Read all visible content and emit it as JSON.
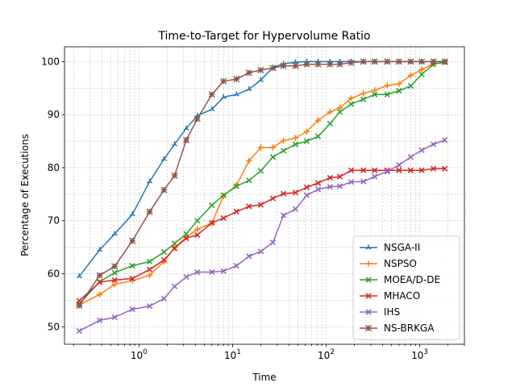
{
  "chart_data": {
    "type": "line",
    "title": "Time-to-Target for Hypervolume Ratio",
    "xlabel": "Time",
    "ylabel": "Percentage of Executions",
    "xscale": "log",
    "xlim": [
      0.16,
      3000
    ],
    "ylim": [
      46.7,
      102.8
    ],
    "x_ticks": [
      {
        "value": 1,
        "base": "10",
        "exp": "0"
      },
      {
        "value": 10,
        "base": "10",
        "exp": "1"
      },
      {
        "value": 100,
        "base": "10",
        "exp": "2"
      },
      {
        "value": 1000,
        "base": "10",
        "exp": "3"
      }
    ],
    "y_ticks": [
      50,
      60,
      70,
      80,
      90,
      100
    ],
    "grid": true,
    "legend_position": "bottom-right",
    "series": [
      {
        "name": "NSGA-II",
        "color": "#1f77b4",
        "marker": "tri",
        "x": [
          0.23,
          0.38,
          0.55,
          0.85,
          1.3,
          1.85,
          2.4,
          3.2,
          4.2,
          6.0,
          8.0,
          11.0,
          15.0,
          20.0,
          27.0,
          35.0,
          47.0,
          62.0,
          82.0,
          110.0,
          140.0,
          185.0,
          250.0,
          330.0,
          450.0,
          600.0,
          800.0,
          1050.0,
          1400.0,
          1850.0
        ],
        "y": [
          59.5,
          64.5,
          67.5,
          71.2,
          77.4,
          81.6,
          84.4,
          87.4,
          89.8,
          91.0,
          93.3,
          93.8,
          94.8,
          96.5,
          98.9,
          99.6,
          99.9,
          100,
          100,
          100,
          100,
          100,
          100,
          100,
          100,
          100,
          100,
          100,
          100,
          100
        ]
      },
      {
        "name": "NSPSO",
        "color": "#ff7f0e",
        "marker": "plus",
        "x": [
          0.23,
          0.38,
          0.55,
          0.85,
          1.3,
          1.85,
          2.4,
          3.2,
          4.2,
          6.0,
          8.0,
          11.0,
          15.0,
          20.0,
          27.0,
          35.0,
          47.0,
          62.0,
          82.0,
          110.0,
          140.0,
          185.0,
          250.0,
          330.0,
          450.0,
          600.0,
          800.0,
          1050.0,
          1400.0,
          1850.0
        ],
        "y": [
          54.1,
          56.1,
          58.0,
          58.7,
          59.7,
          62.3,
          64.9,
          66.9,
          68.4,
          69.5,
          74.7,
          76.7,
          81.3,
          83.8,
          83.8,
          85.1,
          85.6,
          86.8,
          88.9,
          90.5,
          91.3,
          93.1,
          94.0,
          94.6,
          95.5,
          95.8,
          97.4,
          98.5,
          99.6,
          99.9
        ]
      },
      {
        "name": "MOEA/D-DE",
        "color": "#2ca02c",
        "marker": "x",
        "x": [
          0.23,
          0.38,
          0.55,
          0.85,
          1.3,
          1.85,
          2.4,
          3.2,
          4.2,
          6.0,
          8.0,
          11.0,
          15.0,
          20.0,
          27.0,
          35.0,
          47.0,
          62.0,
          82.0,
          110.0,
          140.0,
          185.0,
          250.0,
          330.0,
          450.0,
          600.0,
          800.0,
          1050.0,
          1400.0,
          1850.0
        ],
        "y": [
          54.3,
          58.5,
          60.2,
          61.5,
          62.3,
          64.1,
          65.7,
          67.5,
          70.0,
          72.9,
          74.8,
          76.5,
          77.6,
          79.4,
          82.0,
          83.2,
          84.4,
          85.0,
          85.9,
          88.3,
          90.5,
          92.0,
          92.9,
          93.8,
          93.8,
          94.5,
          95.4,
          97.6,
          99.5,
          99.9
        ]
      },
      {
        "name": "MHACO",
        "color": "#d62728",
        "marker": "x",
        "x": [
          0.23,
          0.38,
          0.55,
          0.85,
          1.3,
          1.85,
          2.4,
          3.2,
          4.2,
          6.0,
          8.0,
          11.0,
          15.0,
          20.0,
          27.0,
          35.0,
          47.0,
          62.0,
          82.0,
          110.0,
          140.0,
          185.0,
          250.0,
          330.0,
          450.0,
          600.0,
          800.0,
          1050.0,
          1400.0,
          1850.0
        ],
        "y": [
          54.9,
          58.4,
          58.8,
          59.1,
          60.8,
          62.6,
          64.8,
          66.7,
          67.3,
          69.6,
          70.5,
          71.7,
          72.7,
          73.0,
          74.2,
          75.1,
          75.3,
          76.3,
          77.1,
          78.1,
          78.3,
          79.5,
          79.5,
          79.5,
          79.5,
          79.5,
          79.5,
          79.5,
          79.8,
          79.8
        ]
      },
      {
        "name": "IHS",
        "color": "#9467bd",
        "marker": "x",
        "x": [
          0.23,
          0.38,
          0.55,
          0.85,
          1.3,
          1.85,
          2.4,
          3.2,
          4.2,
          6.0,
          8.0,
          11.0,
          15.0,
          20.0,
          27.0,
          35.0,
          47.0,
          62.0,
          82.0,
          110.0,
          140.0,
          185.0,
          250.0,
          330.0,
          450.0,
          600.0,
          800.0,
          1050.0,
          1400.0,
          1850.0
        ],
        "y": [
          49.2,
          51.2,
          51.8,
          53.3,
          53.9,
          55.3,
          57.6,
          59.4,
          60.3,
          60.3,
          60.5,
          61.5,
          63.3,
          64.2,
          65.9,
          71.0,
          72.2,
          74.8,
          75.9,
          76.4,
          76.5,
          77.3,
          77.4,
          78.3,
          79.3,
          80.5,
          82.0,
          83.3,
          84.4,
          85.2
        ]
      },
      {
        "name": "NS-BRKGA",
        "color": "#8c564b",
        "marker": "star",
        "x": [
          0.23,
          0.38,
          0.55,
          0.85,
          1.3,
          1.85,
          2.4,
          3.2,
          4.2,
          6.0,
          8.0,
          11.0,
          15.0,
          20.0,
          27.0,
          35.0,
          47.0,
          62.0,
          82.0,
          110.0,
          140.0,
          185.0,
          250.0,
          330.0,
          450.0,
          600.0,
          800.0,
          1050.0,
          1400.0,
          1850.0
        ],
        "y": [
          54.0,
          59.7,
          61.4,
          66.2,
          71.7,
          75.8,
          78.5,
          85.2,
          89.2,
          93.8,
          96.3,
          96.7,
          97.9,
          98.4,
          98.8,
          99.2,
          99.2,
          99.5,
          99.5,
          99.5,
          99.5,
          99.8,
          100,
          100,
          100,
          100,
          100,
          100,
          100,
          100
        ]
      }
    ]
  }
}
